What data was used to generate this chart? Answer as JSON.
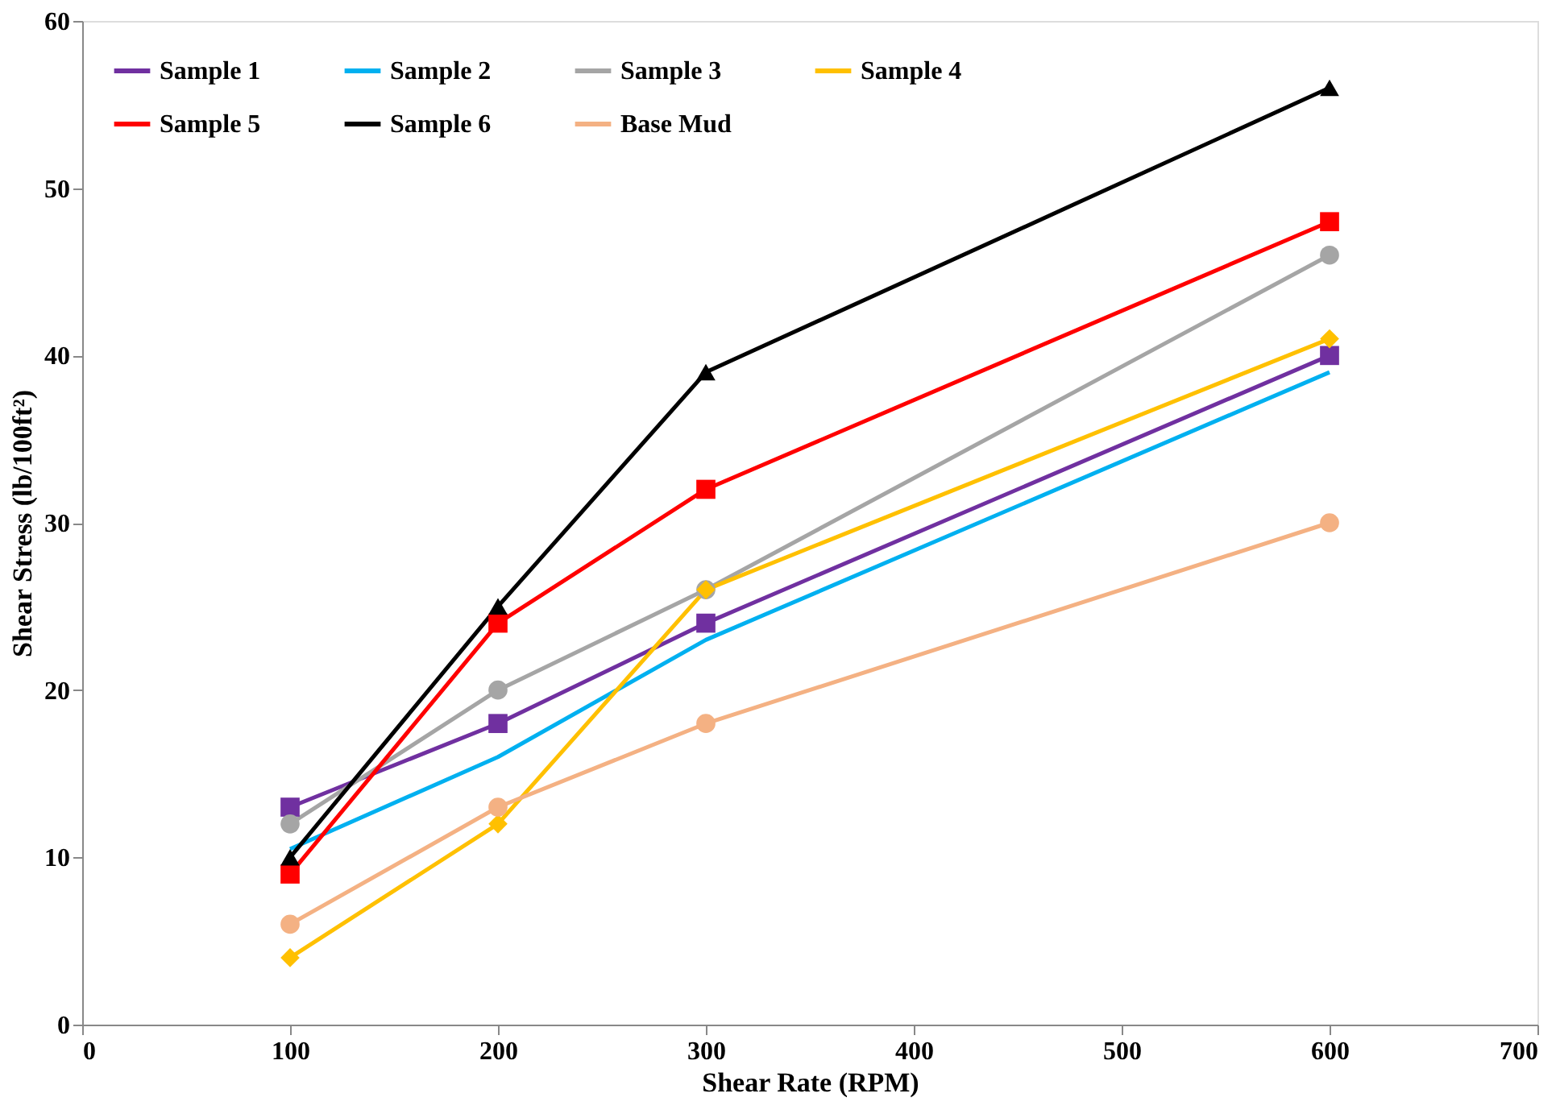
{
  "chart_data": {
    "type": "line",
    "xlabel": "Shear Rate (RPM)",
    "ylabel": "Shear Stress (lb/100ft²)",
    "x": [
      100,
      200,
      300,
      600
    ],
    "xlim": [
      0,
      700
    ],
    "xticks": [
      0,
      100,
      200,
      300,
      400,
      500,
      600,
      700
    ],
    "ylim": [
      0,
      60
    ],
    "yticks": [
      0,
      10,
      20,
      30,
      40,
      50,
      60
    ],
    "grid": false,
    "legend": "top left",
    "series": [
      {
        "name": "Sample 1",
        "color": "#7030a0",
        "marker": "square",
        "values": [
          13,
          18,
          24,
          40
        ]
      },
      {
        "name": "Sample 2",
        "color": "#00b0f0",
        "marker": "none",
        "values": [
          10.5,
          16,
          23,
          39
        ]
      },
      {
        "name": "Sample 3",
        "color": "#a5a5a5",
        "marker": "circle",
        "values": [
          12,
          20,
          26,
          46
        ]
      },
      {
        "name": "Sample 4",
        "color": "#ffc000",
        "marker": "diamond",
        "values": [
          4,
          12,
          26,
          41
        ]
      },
      {
        "name": "Sample 5",
        "color": "#ff0000",
        "marker": "square",
        "values": [
          9,
          24,
          32,
          48
        ]
      },
      {
        "name": "Sample 6",
        "color": "#000000",
        "marker": "triangle",
        "values": [
          10,
          25,
          39,
          56
        ]
      },
      {
        "name": "Base Mud",
        "color": "#f4b183",
        "marker": "circle",
        "values": [
          6,
          13,
          18,
          30
        ]
      }
    ]
  }
}
